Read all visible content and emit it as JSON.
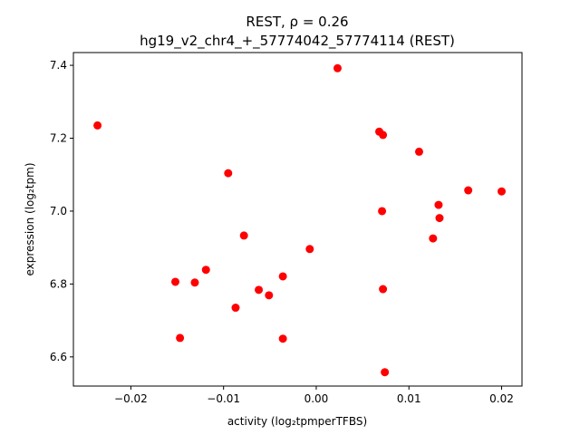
{
  "chart_data": {
    "type": "scatter",
    "title_line1": "REST, ρ = 0.26",
    "title_line2": "hg19_v2_chr4_+_57774042_57774114 (REST)",
    "xlabel": "activity (log₂tpmperTFBS)",
    "ylabel": "expression (log₂tpm)",
    "xlim": [
      -0.0262,
      0.0222
    ],
    "ylim": [
      6.52,
      7.435
    ],
    "xticks": [
      {
        "value": -0.02,
        "label": "−0.02"
      },
      {
        "value": -0.01,
        "label": "−0.01"
      },
      {
        "value": 0.0,
        "label": "0.00"
      },
      {
        "value": 0.01,
        "label": "0.01"
      },
      {
        "value": 0.02,
        "label": "0.02"
      }
    ],
    "yticks": [
      {
        "value": 6.6,
        "label": "6.6"
      },
      {
        "value": 6.8,
        "label": "6.8"
      },
      {
        "value": 7.0,
        "label": "7.0"
      },
      {
        "value": 7.2,
        "label": "7.2"
      },
      {
        "value": 7.4,
        "label": "7.4"
      }
    ],
    "grid": false,
    "marker_color": "#ff0000",
    "points": [
      {
        "x": -0.0236,
        "y": 7.235
      },
      {
        "x": -0.0152,
        "y": 6.806
      },
      {
        "x": -0.0147,
        "y": 6.652
      },
      {
        "x": -0.0131,
        "y": 6.804
      },
      {
        "x": -0.0119,
        "y": 6.839
      },
      {
        "x": -0.0095,
        "y": 7.104
      },
      {
        "x": -0.0087,
        "y": 6.735
      },
      {
        "x": -0.0078,
        "y": 6.933
      },
      {
        "x": -0.0062,
        "y": 6.784
      },
      {
        "x": -0.0051,
        "y": 6.769
      },
      {
        "x": -0.0036,
        "y": 6.821
      },
      {
        "x": -0.0036,
        "y": 6.65
      },
      {
        "x": -0.0007,
        "y": 6.896
      },
      {
        "x": 0.0023,
        "y": 7.392
      },
      {
        "x": 0.0068,
        "y": 7.218
      },
      {
        "x": 0.0072,
        "y": 7.209
      },
      {
        "x": 0.0071,
        "y": 7.0
      },
      {
        "x": 0.0072,
        "y": 6.786
      },
      {
        "x": 0.0074,
        "y": 6.558
      },
      {
        "x": 0.0111,
        "y": 7.163
      },
      {
        "x": 0.0126,
        "y": 6.925
      },
      {
        "x": 0.0132,
        "y": 7.017
      },
      {
        "x": 0.0133,
        "y": 6.981
      },
      {
        "x": 0.0164,
        "y": 7.057
      },
      {
        "x": 0.02,
        "y": 7.054
      }
    ]
  }
}
